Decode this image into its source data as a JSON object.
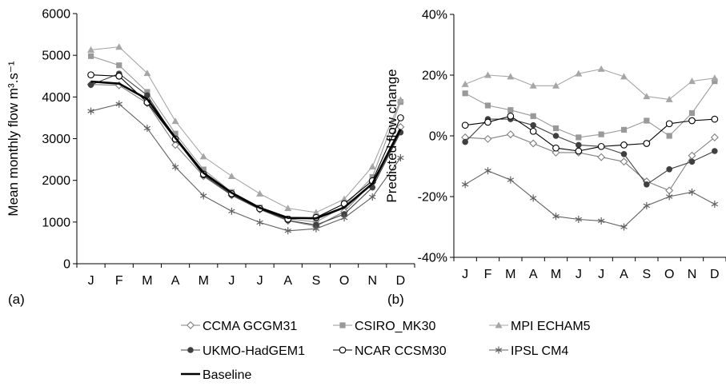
{
  "chart_data": [
    {
      "type": "line",
      "panel_label": "(a)",
      "ylabel": "Mean monthly flow m³.s⁻¹",
      "ylim": [
        0,
        6000
      ],
      "yticks": [
        "0",
        "1000",
        "2000",
        "3000",
        "4000",
        "5000",
        "6000"
      ],
      "ytick_values": [
        0,
        1000,
        2000,
        3000,
        4000,
        5000,
        6000
      ],
      "categories": [
        "J",
        "F",
        "M",
        "A",
        "M",
        "J",
        "J",
        "A",
        "S",
        "O",
        "N",
        "D"
      ],
      "series": [
        {
          "key": "ccma",
          "values": [
            4300,
            4280,
            3850,
            2850,
            2100,
            1640,
            1300,
            1030,
            900,
            1250,
            1950,
            3280
          ]
        },
        {
          "key": "csiro",
          "values": [
            4980,
            4760,
            4120,
            3120,
            2260,
            1720,
            1350,
            1080,
            1000,
            1380,
            2080,
            3880
          ]
        },
        {
          "key": "mpi",
          "values": [
            5130,
            5200,
            4570,
            3420,
            2570,
            2100,
            1680,
            1330,
            1230,
            1550,
            2330,
            3930
          ]
        },
        {
          "key": "ukmo",
          "values": [
            4290,
            4560,
            4040,
            3000,
            2120,
            1650,
            1310,
            1040,
            930,
            1190,
            1830,
            3150
          ]
        },
        {
          "key": "ncar",
          "values": [
            4530,
            4500,
            3870,
            2990,
            2150,
            1680,
            1320,
            1070,
            1110,
            1440,
            1990,
            3500
          ]
        },
        {
          "key": "ipsl",
          "values": [
            3660,
            3830,
            3250,
            2320,
            1630,
            1260,
            990,
            790,
            840,
            1100,
            1600,
            2540
          ]
        },
        {
          "key": "baseline",
          "values": [
            4370,
            4320,
            3950,
            3020,
            2180,
            1700,
            1340,
            1100,
            1090,
            1350,
            1920,
            3230
          ]
        }
      ]
    },
    {
      "type": "line",
      "panel_label": "(b)",
      "ylabel": "Predicted flow change",
      "ylim": [
        -40,
        40
      ],
      "yticks": [
        "-40%",
        "-20%",
        "0%",
        "20%",
        "40%"
      ],
      "ytick_values": [
        -40,
        -20,
        0,
        20,
        40
      ],
      "categories": [
        "J",
        "F",
        "M",
        "A",
        "M",
        "J",
        "J",
        "A",
        "S",
        "O",
        "N",
        "D"
      ],
      "series": [
        {
          "key": "ccma",
          "values": [
            -0.5,
            -1,
            0.5,
            -2.5,
            -5.5,
            -5.5,
            -7,
            -8.5,
            -15,
            -18,
            -6.5,
            -0.5
          ]
        },
        {
          "key": "csiro",
          "values": [
            14,
            10,
            8.5,
            6.5,
            2.5,
            -0.5,
            0.5,
            2,
            5,
            0,
            7.5,
            18
          ]
        },
        {
          "key": "mpi",
          "values": [
            17,
            20,
            19.5,
            16.5,
            16.5,
            20.5,
            22,
            19.5,
            13,
            12,
            18,
            19
          ]
        },
        {
          "key": "ukmo",
          "values": [
            -2,
            5.5,
            5.5,
            3.5,
            0,
            -3,
            -3.5,
            -6,
            -16,
            -11,
            -8.5,
            -5
          ]
        },
        {
          "key": "ncar",
          "values": [
            3.5,
            4.5,
            6.5,
            1.5,
            -4,
            -5,
            -3.5,
            -3,
            -2.5,
            4,
            5,
            5.5
          ]
        },
        {
          "key": "ipsl",
          "values": [
            -16,
            -11.5,
            -14.5,
            -20.5,
            -26.5,
            -27.5,
            -28,
            -30,
            -23,
            -20,
            -18.5,
            -22.5
          ]
        }
      ]
    }
  ],
  "legend": [
    {
      "key": "ccma",
      "label": "CCMA GCGM31",
      "marker": "diamond-open",
      "color": "#808080"
    },
    {
      "key": "csiro",
      "label": "CSIRO_MK30",
      "marker": "square-filled",
      "color": "#999999"
    },
    {
      "key": "mpi",
      "label": "MPI ECHAM5",
      "marker": "triangle-filled",
      "color": "#a6a6a6"
    },
    {
      "key": "ukmo",
      "label": "UKMO-HadGEM1",
      "marker": "circle-filled",
      "color": "#404040"
    },
    {
      "key": "ncar",
      "label": "NCAR CCSM30",
      "marker": "circle-open",
      "color": "#000000"
    },
    {
      "key": "ipsl",
      "label": "IPSL CM4",
      "marker": "star",
      "color": "#606060"
    },
    {
      "key": "baseline",
      "label": "Baseline",
      "marker": "none",
      "color": "#000000"
    }
  ]
}
